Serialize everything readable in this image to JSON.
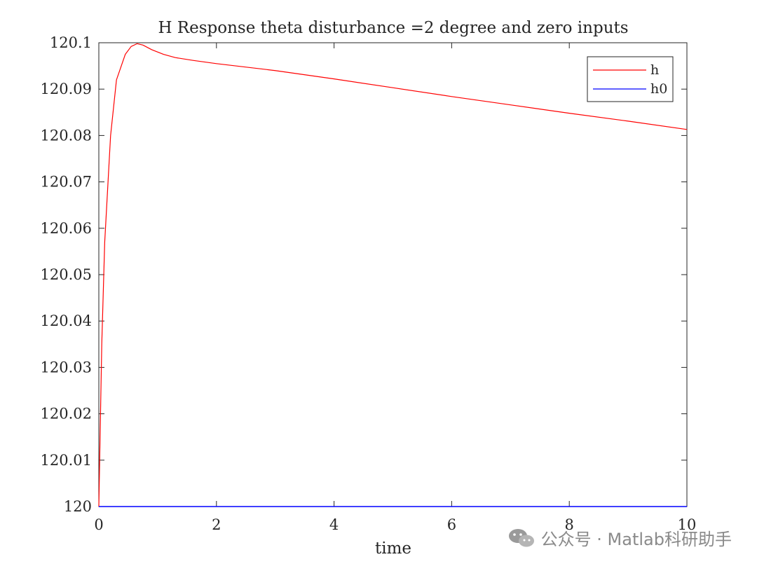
{
  "chart_data": {
    "type": "line",
    "title": "H Response theta disturbance =2 degree and zero inputs",
    "xlabel": "time",
    "ylabel": "",
    "xlim": [
      0,
      10
    ],
    "ylim": [
      120,
      120.1
    ],
    "x_ticks": [
      0,
      2,
      4,
      6,
      8,
      10
    ],
    "x_tick_labels": [
      "0",
      "2",
      "4",
      "6",
      "8",
      "10"
    ],
    "y_ticks": [
      120,
      120.01,
      120.02,
      120.03,
      120.04,
      120.05,
      120.06,
      120.07,
      120.08,
      120.09,
      120.1
    ],
    "y_tick_labels": [
      "120",
      "120.01",
      "120.02",
      "120.03",
      "120.04",
      "120.05",
      "120.06",
      "120.07",
      "120.08",
      "120.09",
      "120.1"
    ],
    "grid": false,
    "legend_position": "top-right",
    "series": [
      {
        "name": "h",
        "color": "#ff0000",
        "x": [
          0,
          0.05,
          0.1,
          0.2,
          0.3,
          0.45,
          0.55,
          0.65,
          0.75,
          0.9,
          1.1,
          1.3,
          1.6,
          2.0,
          3.0,
          4.0,
          5.0,
          6.0,
          7.0,
          8.0,
          9.0,
          10.0
        ],
        "y": [
          120.0,
          120.035,
          120.057,
          120.08,
          120.092,
          120.0975,
          120.0992,
          120.0998,
          120.0995,
          120.0985,
          120.0975,
          120.0968,
          120.0962,
          120.0955,
          120.094,
          120.0922,
          120.0903,
          120.0884,
          120.0866,
          120.0848,
          120.0831,
          120.0813
        ]
      },
      {
        "name": "h0",
        "color": "#0000ff",
        "x": [
          0,
          10
        ],
        "y": [
          120.0,
          120.0
        ]
      }
    ]
  },
  "watermark": {
    "text": "公众号 · Matlab科研助手",
    "icon": "wechat-icon"
  }
}
